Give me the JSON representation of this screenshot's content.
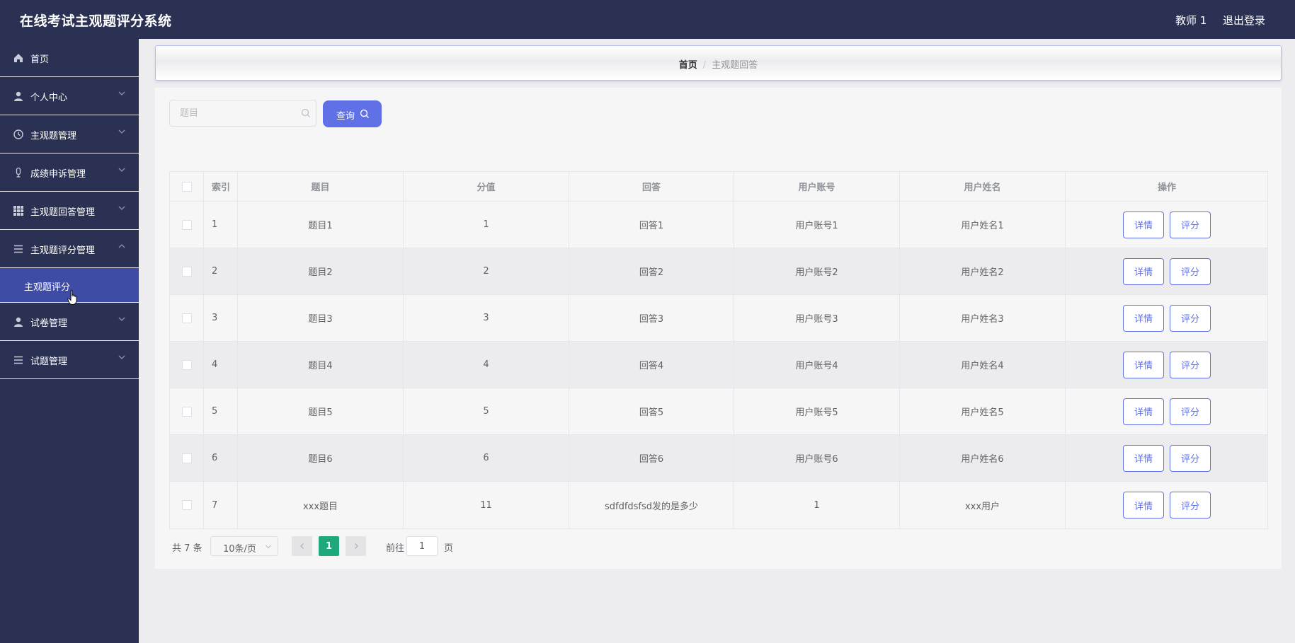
{
  "header": {
    "title": "在线考试主观题评分系统",
    "user": "教师 1",
    "logout": "退出登录"
  },
  "sidebar": {
    "items": [
      {
        "label": "首页",
        "icon": "home-icon"
      },
      {
        "label": "个人中心",
        "icon": "user-icon"
      },
      {
        "label": "主观题管理",
        "icon": "clock-icon"
      },
      {
        "label": "成绩申诉管理",
        "icon": "microphone-icon"
      },
      {
        "label": "主观题回答管理",
        "icon": "grid-icon"
      },
      {
        "label": "主观题评分管理",
        "icon": "list-icon"
      },
      {
        "label": "试卷管理",
        "icon": "user-icon"
      },
      {
        "label": "试题管理",
        "icon": "list-icon"
      }
    ],
    "submenu": {
      "label": "主观题评分"
    }
  },
  "breadcrumb": {
    "home": "首页",
    "separator": "/",
    "current": "主观题回答"
  },
  "search": {
    "placeholder": "题目",
    "button": "查询"
  },
  "table": {
    "headers": [
      "索引",
      "题目",
      "分值",
      "回答",
      "用户账号",
      "用户姓名",
      "操作"
    ],
    "rows": [
      {
        "index": "1",
        "title": "题目1",
        "score": "1",
        "answer": "回答1",
        "account": "用户账号1",
        "name": "用户姓名1"
      },
      {
        "index": "2",
        "title": "题目2",
        "score": "2",
        "answer": "回答2",
        "account": "用户账号2",
        "name": "用户姓名2"
      },
      {
        "index": "3",
        "title": "题目3",
        "score": "3",
        "answer": "回答3",
        "account": "用户账号3",
        "name": "用户姓名3"
      },
      {
        "index": "4",
        "title": "题目4",
        "score": "4",
        "answer": "回答4",
        "account": "用户账号4",
        "name": "用户姓名4"
      },
      {
        "index": "5",
        "title": "题目5",
        "score": "5",
        "answer": "回答5",
        "account": "用户账号5",
        "name": "用户姓名5"
      },
      {
        "index": "6",
        "title": "题目6",
        "score": "6",
        "answer": "回答6",
        "account": "用户账号6",
        "name": "用户姓名6"
      },
      {
        "index": "7",
        "title": "xxx题目",
        "score": "11",
        "answer": "sdfdfdsfsd发的是多少",
        "account": "1",
        "name": "xxx用户"
      }
    ],
    "actions": {
      "detail": "详情",
      "grade": "评分"
    }
  },
  "pagination": {
    "total": "共 7 条",
    "page_size": "10条/页",
    "current_page": "1",
    "goto_label": "前往",
    "goto_value": "1",
    "page_suffix": "页"
  },
  "colors": {
    "sidebar_bg": "#2a3152",
    "submenu_active": "#3e4ca5",
    "accent": "#6071e8",
    "pager_active": "#1fa87c"
  }
}
